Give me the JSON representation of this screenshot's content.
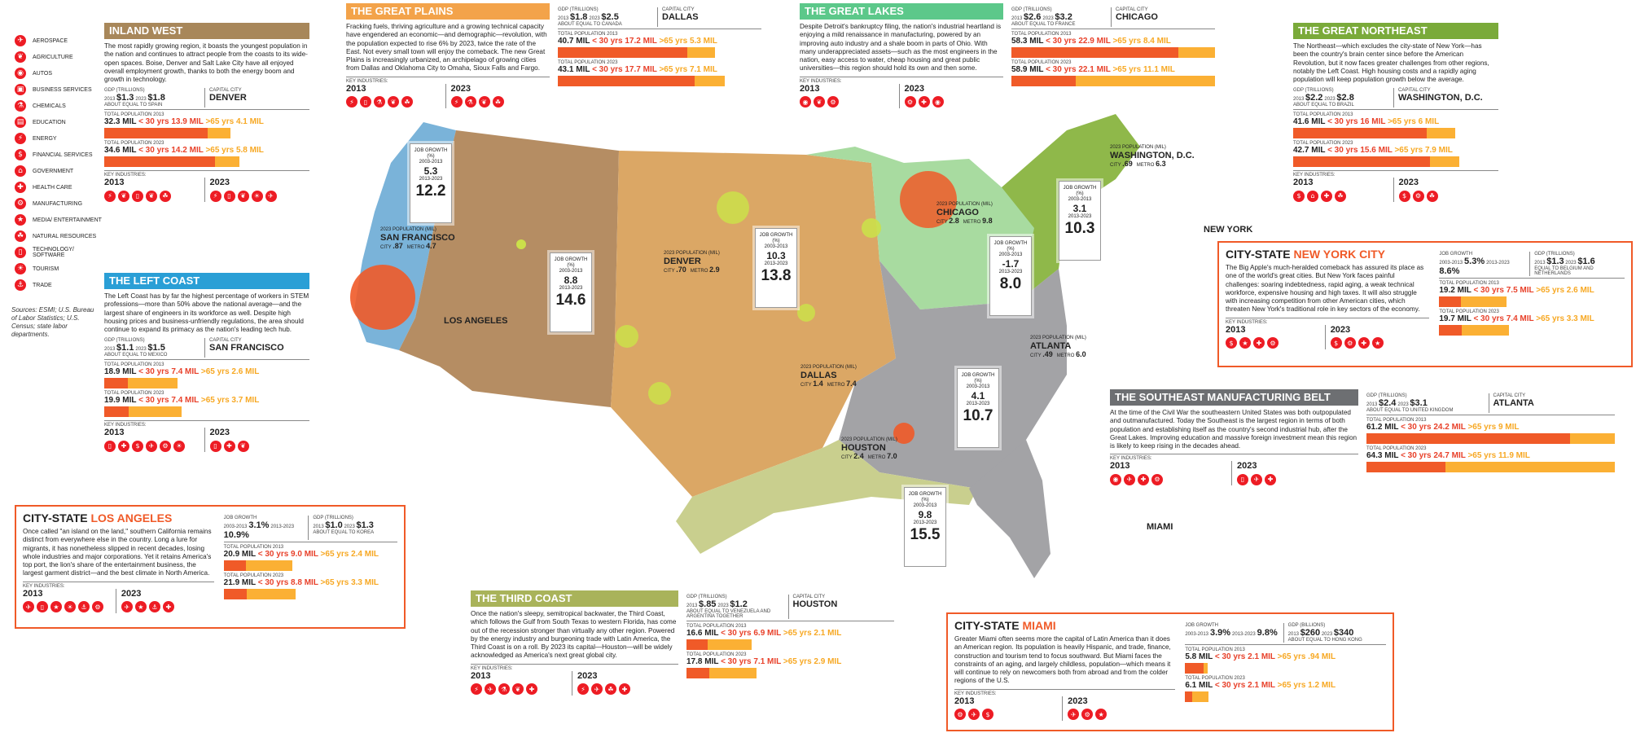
{
  "legend": [
    {
      "label": "Aerospace",
      "icon": "airplane-icon",
      "glyph": "✈"
    },
    {
      "label": "Agriculture",
      "icon": "wheat-icon",
      "glyph": "❦"
    },
    {
      "label": "Autos",
      "icon": "car-icon",
      "glyph": "◉"
    },
    {
      "label": "Business services",
      "icon": "briefcase-icon",
      "glyph": "▣"
    },
    {
      "label": "Chemicals",
      "icon": "flask-icon",
      "glyph": "⚗"
    },
    {
      "label": "Education",
      "icon": "book-icon",
      "glyph": "▤"
    },
    {
      "label": "Energy",
      "icon": "lightning-icon",
      "glyph": "⚡"
    },
    {
      "label": "Financial services",
      "icon": "dollar-icon",
      "glyph": "$"
    },
    {
      "label": "Government",
      "icon": "capitol-icon",
      "glyph": "⌂"
    },
    {
      "label": "Health care",
      "icon": "cross-icon",
      "glyph": "✚"
    },
    {
      "label": "Manufacturing",
      "icon": "gear-icon",
      "glyph": "⚙"
    },
    {
      "label": "Media/ entertainment",
      "icon": "film-icon",
      "glyph": "★"
    },
    {
      "label": "Natural resources",
      "icon": "leaf-icon",
      "glyph": "☘"
    },
    {
      "label": "Technology/ software",
      "icon": "computer-icon",
      "glyph": "▯"
    },
    {
      "label": "Tourism",
      "icon": "palm-icon",
      "glyph": "☀"
    },
    {
      "label": "Trade",
      "icon": "ship-icon",
      "glyph": "⚓"
    }
  ],
  "sources": "Sources: ESMI; U.S. Bureau of Labor Statistics; U.S. Census; state labor departments.",
  "colors": {
    "under30": "#f05a28",
    "middle": "#4d5866",
    "over65": "#fbb034",
    "accent": "#ed1c24"
  },
  "regions": {
    "inland_west": {
      "title": "Inland West",
      "color": "#a8875a",
      "desc": "The most rapidly growing region, it boasts the youngest population in the nation and continues to attract people from the coasts to its wide-open spaces. Boise, Denver and Salt Lake City have all enjoyed overall employment growth, thanks to both the energy boom and growth in technology.",
      "gdp_label": "GDP (TRILLIONS)",
      "gdp_2013": "$1.3",
      "gdp_2023": "$1.8",
      "gdp_equal": "ABOUT EQUAL TO SPAIN",
      "capital_label": "CAPITAL CITY",
      "capital": "DENVER",
      "pop13_label": "TOTAL POPULATION 2013",
      "pop13": "32.3 MIL",
      "pop13_u30": "< 30 yrs 13.9 MIL",
      "pop13_o65": ">65 yrs 4.1 MIL",
      "pop23_label": "TOTAL POPULATION 2023",
      "pop23": "34.6 MIL",
      "pop23_u30": "< 30 yrs 14.2 MIL",
      "pop23_o65": ">65 yrs 5.8 MIL",
      "ind_label": "KEY INDUSTRIES:",
      "y1": "2013",
      "y2": "2023",
      "ind13": [
        "lightning-icon",
        "wheat-icon",
        "computer-icon",
        "wheat-icon",
        "leaf-icon"
      ],
      "ind23": [
        "lightning-icon",
        "computer-icon",
        "wheat-icon",
        "palm-icon",
        "airplane-icon"
      ]
    },
    "left_coast": {
      "title": "The Left Coast",
      "color": "#2a9fd6",
      "desc": "The Left Coast has by far the highest percentage of workers in STEM professions—more than 50% above the national average—and the largest share of engineers in its workforce as well. Despite high housing prices and business-unfriendly regulations, the area should continue to expand its primacy as the nation's leading tech hub.",
      "gdp_label": "GDP (TRILLIONS)",
      "gdp_2013": "$1.1",
      "gdp_2023": "$1.5",
      "gdp_equal": "ABOUT EQUAL TO MEXICO",
      "capital_label": "CAPITAL CITY",
      "capital": "SAN FRANCISCO",
      "pop13_label": "TOTAL POPULATION 2013",
      "pop13": "18.9 MIL",
      "pop13_u30": "< 30 yrs 7.4 MIL",
      "pop13_o65": ">65 yrs 2.6 MIL",
      "pop23_label": "TOTAL POPULATION 2023",
      "pop23": "19.9 MIL",
      "pop23_u30": "< 30 yrs 7.4 MIL",
      "pop23_o65": ">65 yrs 3.7 MIL",
      "ind_label": "KEY INDUSTRIES:",
      "y1": "2013",
      "y2": "2023",
      "ind13": [
        "computer-icon",
        "cross-icon",
        "dollar-icon",
        "airplane-icon",
        "gear-icon",
        "palm-icon"
      ],
      "ind23": [
        "computer-icon",
        "cross-icon",
        "wheat-icon"
      ]
    },
    "great_plains": {
      "title": "The Great Plains",
      "color": "#f3a34a",
      "desc": "Fracking fuels, thriving agriculture and a growing technical capacity have engendered an economic—and demographic—revolution, with the population expected to rise 6% by 2023, twice the rate of the East. Not every small town will enjoy the comeback. The new Great Plains is increasingly urbanized, an archipelago of growing cities from Dallas and Oklahoma City to Omaha, Sioux Falls and Fargo.",
      "ind_label": "KEY INDUSTRIES:",
      "y1": "2013",
      "y2": "2023",
      "ind13": [
        "lightning-icon",
        "computer-icon",
        "flask-icon",
        "wheat-icon",
        "leaf-icon"
      ],
      "ind23": [
        "lightning-icon",
        "flask-icon",
        "wheat-icon",
        "leaf-icon"
      ],
      "gdp_label": "GDP (TRILLIONS)",
      "gdp_2013": "$1.8",
      "gdp_2023": "$2.5",
      "gdp_equal": "ABOUT EQUAL TO CANADA",
      "capital_label": "CAPITAL CITY",
      "capital": "DALLAS",
      "pop13_label": "TOTAL POPULATION 2013",
      "pop13": "40.7 MIL",
      "pop13_u30": "< 30 yrs 17.2 MIL",
      "pop13_o65": ">65 yrs 5.3 MIL",
      "pop23_label": "TOTAL POPULATION 2023",
      "pop23": "43.1 MIL",
      "pop23_u30": "< 30 yrs 17.7 MIL",
      "pop23_o65": ">65 yrs 7.1 MIL"
    },
    "great_lakes": {
      "title": "The Great Lakes",
      "color": "#5cc88a",
      "desc": "Despite Detroit's bankruptcy filing, the nation's industrial heartland is enjoying a mild renaissance in manufacturing, powered by an improving auto industry and a shale boom in parts of Ohio. With many underappreciated assets—such as the most engineers in the nation, easy access to water, cheap housing and great public universities—this region should hold its own and then some.",
      "ind_label": "KEY INDUSTRIES:",
      "y1": "2013",
      "y2": "2023",
      "ind13": [
        "car-icon",
        "wheat-icon",
        "gear-icon"
      ],
      "ind23": [
        "gear-icon",
        "cross-icon",
        "car-icon"
      ],
      "gdp_label": "GDP (TRILLIONS)",
      "gdp_2013": "$2.6",
      "gdp_2023": "$3.2",
      "gdp_equal": "ABOUT EQUAL TO FRANCE",
      "capital_label": "CAPITAL CITY",
      "capital": "CHICAGO",
      "pop13_label": "TOTAL POPULATION 2013",
      "pop13": "58.3 MIL",
      "pop13_u30": "< 30 yrs 22.9 MIL",
      "pop13_o65": ">65 yrs 8.4 MIL",
      "pop23_label": "TOTAL POPULATION 2023",
      "pop23": "58.9 MIL",
      "pop23_u30": "< 30 yrs 22.1 MIL",
      "pop23_o65": ">65 yrs 11.1 MIL"
    },
    "great_northeast": {
      "title": "The Great Northeast",
      "color": "#7aaa3a",
      "desc": "The Northeast—which excludes the city-state of New York—has been the country's brain center since before the American Revolution, but it now faces greater challenges from other regions, notably the Left Coast. High housing costs and a rapidly aging population will keep population growth below the average.",
      "gdp_label": "GDP (TRILLIONS)",
      "gdp_2013": "$2.2",
      "gdp_2023": "$2.8",
      "gdp_equal": "ABOUT EQUAL TO BRAZIL",
      "capital_label": "CAPITAL CITY",
      "capital": "WASHINGTON, D.C.",
      "pop13_label": "TOTAL POPULATION 2013",
      "pop13": "41.6 MIL",
      "pop13_u30": "< 30 yrs 16 MIL",
      "pop13_o65": ">65 yrs 6 MIL",
      "pop23_label": "TOTAL POPULATION 2023",
      "pop23": "42.7 MIL",
      "pop23_u30": "< 30 yrs 15.6 MIL",
      "pop23_o65": ">65 yrs 7.9 MIL",
      "ind_label": "KEY INDUSTRIES:",
      "y1": "2013",
      "y2": "2023",
      "ind13": [
        "dollar-icon",
        "capitol-icon",
        "cross-icon",
        "leaf-icon"
      ],
      "ind23": [
        "dollar-icon",
        "gear-icon",
        "leaf-icon"
      ]
    },
    "southeast": {
      "title": "The Southeast Manufacturing Belt",
      "color": "#6d6f72",
      "desc": "At the time of the Civil War the southeastern United States was both outpopulated and outmanufactured. Today the Southeast is the largest region in terms of both population and establishing itself as the country's second industrial hub, after the Great Lakes. Improving education and massive foreign investment mean this region is likely to keep rising in the decades ahead.",
      "ind_label": "KEY INDUSTRIES:",
      "y1": "2013",
      "y2": "2023",
      "ind13": [
        "car-icon",
        "airplane-icon",
        "cross-icon",
        "gear-icon"
      ],
      "ind23": [
        "computer-icon",
        "airplane-icon",
        "cross-icon"
      ],
      "gdp_label": "GDP (TRILLIONS)",
      "gdp_2013": "$2.4",
      "gdp_2023": "$3.1",
      "gdp_equal": "ABOUT EQUAL TO UNITED KINGDOM",
      "capital_label": "CAPITAL CITY",
      "capital": "ATLANTA",
      "pop13_label": "TOTAL POPULATION 2013",
      "pop13": "61.2 MIL",
      "pop13_u30": "< 30 yrs 24.2 MIL",
      "pop13_o65": ">65 yrs 9 MIL",
      "pop23_label": "TOTAL POPULATION 2023",
      "pop23": "64.3 MIL",
      "pop23_u30": "< 30 yrs 24.7 MIL",
      "pop23_o65": ">65 yrs 11.9 MIL"
    },
    "third_coast": {
      "title": "The Third Coast",
      "color": "#a9b35a",
      "desc": "Once the nation's sleepy, semitropical backwater, the Third Coast, which follows the Gulf from South Texas to western Florida, has come out of the recession stronger than virtually any other region. Powered by the energy industry and burgeoning trade with Latin America, the Third Coast is on a roll. By 2023 its capital—Houston—will be widely acknowledged as America's next great global city.",
      "ind_label": "KEY INDUSTRIES:",
      "y1": "2013",
      "y2": "2023",
      "ind13": [
        "lightning-icon",
        "airplane-icon",
        "flask-icon",
        "wheat-icon",
        "cross-icon"
      ],
      "ind23": [
        "lightning-icon",
        "airplane-icon",
        "leaf-icon",
        "cross-icon"
      ],
      "gdp_label": "GDP (TRILLIONS)",
      "gdp_2013": "$.85",
      "gdp_2023": "$1.2",
      "gdp_equal": "ABOUT EQUAL TO VENEZUELA AND ARGENTINA TOGETHER",
      "capital_label": "CAPITAL CITY",
      "capital": "HOUSTON",
      "pop13_label": "TOTAL POPULATION 2013",
      "pop13": "16.6 MIL",
      "pop13_u30": "< 30 yrs 6.9 MIL",
      "pop13_o65": ">65 yrs 2.1 MIL",
      "pop23_label": "TOTAL POPULATION 2023",
      "pop23": "17.8 MIL",
      "pop23_u30": "< 30 yrs 7.1 MIL",
      "pop23_o65": ">65 yrs 2.9 MIL"
    }
  },
  "cities": {
    "la": {
      "prefix": "CITY-STATE",
      "name": "LOS ANGELES",
      "desc": "Once called \"an island on the land,\" southern California remains distinct from everywhere else in the country. Long a lure for migrants, it has nonetheless slipped in recent decades, losing whole industries and major corporations. Yet it retains America's top port, the lion's share of the entertainment business, the largest garment district—and the best climate in North America.",
      "jg_label": "JOB GROWTH",
      "jg1_yrs": "2003-2013",
      "jg1": "3.1%",
      "jg2_yrs": "2013-2023",
      "jg2": "10.9%",
      "gdp_label": "GDP (TRILLIONS)",
      "gdp_2013": "$1.0",
      "gdp_2023": "$1.3",
      "gdp_equal": "ABOUT EQUAL TO KOREA",
      "pop13_label": "TOTAL POPULATION 2013",
      "pop13": "20.9 MIL",
      "pop13_u30": "< 30 yrs 9.0 MIL",
      "pop13_o65": ">65 yrs 2.4 MIL",
      "pop23_label": "TOTAL POPULATION 2023",
      "pop23": "21.9 MIL",
      "pop23_u30": "< 30 yrs 8.8 MIL",
      "pop23_o65": ">65 yrs 3.3 MIL",
      "ind_label": "KEY INDUSTRIES:",
      "y1": "2013",
      "y2": "2023",
      "ind13": [
        "airplane-icon",
        "computer-icon",
        "film-icon",
        "palm-icon",
        "ship-icon",
        "gear-icon"
      ],
      "ind23": [
        "airplane-icon",
        "film-icon",
        "ship-icon",
        "cross-icon"
      ]
    },
    "ny": {
      "prefix": "CITY-STATE",
      "name": "NEW YORK CITY",
      "desc": "The Big Apple's much-heralded comeback has assured its place as one of the world's great cities. But New York faces painful challenges: soaring indebtedness, rapid aging, a weak technical workforce, expensive housing and high taxes. It will also struggle with increasing competition from other American cities, which threaten New York's traditional role in key sectors of the economy.",
      "jg_label": "JOB GROWTH",
      "jg1_yrs": "2003-2013",
      "jg1": "5.3%",
      "jg2_yrs": "2013-2023",
      "jg2": "8.6%",
      "gdp_label": "GDP (TRILLIONS)",
      "gdp_2013": "$1.3",
      "gdp_2023": "$1.6",
      "gdp_equal": "EQUAL TO BELGIUM AND NETHERLANDS",
      "pop13_label": "TOTAL POPULATION 2013",
      "pop13": "19.2 MIL",
      "pop13_u30": "< 30 yrs 7.5 MIL",
      "pop13_o65": ">65 yrs 2.6 MIL",
      "pop23_label": "TOTAL POPULATION 2023",
      "pop23": "19.7 MIL",
      "pop23_u30": "< 30 yrs 7.4 MIL",
      "pop23_o65": ">65 yrs 3.3 MIL",
      "ind_label": "KEY INDUSTRIES:",
      "y1": "2013",
      "y2": "2023",
      "ind13": [
        "dollar-icon",
        "film-icon",
        "cross-icon",
        "gear-icon"
      ],
      "ind23": [
        "dollar-icon",
        "gear-icon",
        "cross-icon",
        "film-icon"
      ]
    },
    "miami": {
      "prefix": "CITY-STATE",
      "name": "MIAMI",
      "desc": "Greater Miami often seems more the capital of Latin America than it does an American region. Its population is heavily Hispanic, and trade, finance, construction and tourism tend to focus southward. But Miami faces the constraints of an aging, and largely childless, population—which means it will continue to rely on newcomers both from abroad and from the colder regions of the U.S.",
      "jg_label": "JOB GROWTH",
      "jg1_yrs": "2003-2013",
      "jg1": "3.9%",
      "jg2_yrs": "2013-2023",
      "jg2": "9.8%",
      "gdp_label": "GDP (BILLIONS)",
      "gdp_2013": "$260",
      "gdp_2023": "$340",
      "gdp_equal": "ABOUT EQUAL TO HONG KONG",
      "pop13_label": "TOTAL POPULATION 2013",
      "pop13": "5.8 MIL",
      "pop13_u30": "< 30 yrs 2.1 MIL",
      "pop13_o65": ">65 yrs .94 MIL",
      "pop23_label": "TOTAL POPULATION 2023",
      "pop23": "6.1 MIL",
      "pop23_u30": "< 30 yrs 2.1 MIL",
      "pop23_o65": ">65 yrs 1.2 MIL",
      "ind_label": "KEY INDUSTRIES:",
      "y1": "2013",
      "y2": "2023",
      "ind13": [
        "gear-icon",
        "airplane-icon",
        "dollar-icon"
      ],
      "ind23": [
        "airplane-icon",
        "gear-icon",
        "film-icon"
      ]
    }
  },
  "jobgrowth": [
    {
      "id": "inland",
      "label": "JOB GROWTH (%)",
      "yrs1": "2003-2013",
      "v1": "5.3",
      "yrs2": "2013-2023",
      "v2": "12.2"
    },
    {
      "id": "plains",
      "label": "JOB GROWTH (%)",
      "yrs1": "2003-2013",
      "v1": "8.8",
      "yrs2": "2013-2023",
      "v2": "14.6"
    },
    {
      "id": "plains2",
      "label": "JOB GROWTH (%)",
      "yrs1": "2003-2013",
      "v1": "10.3",
      "yrs2": "2013-2023",
      "v2": "13.8"
    },
    {
      "id": "lakes",
      "label": "JOB GROWTH (%)",
      "yrs1": "2003-2013",
      "v1": "-1.7",
      "yrs2": "2013-2023",
      "v2": "8.0"
    },
    {
      "id": "northeast",
      "label": "JOB GROWTH (%)",
      "yrs1": "2003-2013",
      "v1": "3.1",
      "yrs2": "2013-2023",
      "v2": "10.3"
    },
    {
      "id": "southeast",
      "label": "JOB GROWTH (%)",
      "yrs1": "2003-2013",
      "v1": "4.1",
      "yrs2": "2013-2023",
      "v2": "10.7"
    },
    {
      "id": "thirdcoast",
      "label": "JOB GROWTH (%)",
      "yrs1": "2003-2013",
      "v1": "9.8",
      "yrs2": "2013-2023",
      "v2": "15.5"
    }
  ],
  "metros": [
    {
      "id": "sf",
      "label": "2023 POPULATION (MIL)",
      "name": "SAN FRANCISCO",
      "city_label": "CITY",
      "city": ".87",
      "metro_label": "METRO",
      "metro": "4.7"
    },
    {
      "id": "denver",
      "label": "2023 POPULATION (MIL)",
      "name": "DENVER",
      "city_label": "CITY",
      "city": ".70",
      "metro_label": "METRO",
      "metro": "2.9"
    },
    {
      "id": "chicago",
      "label": "2023 POPULATION (MIL)",
      "name": "CHICAGO",
      "city_label": "CITY",
      "city": "2.8",
      "metro_label": "METRO",
      "metro": "9.8"
    },
    {
      "id": "dc",
      "label": "2023 POPULATION (MIL)",
      "name": "WASHINGTON, D.C.",
      "city_label": "CITY",
      "city": ".69",
      "metro_label": "METRO",
      "metro": "6.3"
    },
    {
      "id": "dallas",
      "label": "2023 POPULATION (MIL)",
      "name": "DALLAS",
      "city_label": "CITY",
      "city": "1.4",
      "metro_label": "METRO",
      "metro": "7.4"
    },
    {
      "id": "atlanta",
      "label": "2023 POPULATION (MIL)",
      "name": "ATLANTA",
      "city_label": "CITY",
      "city": ".49",
      "metro_label": "METRO",
      "metro": "6.0"
    },
    {
      "id": "houston",
      "label": "2023 POPULATION (MIL)",
      "name": "HOUSTON",
      "city_label": "CITY",
      "city": "2.4",
      "metro_label": "METRO",
      "metro": "7.0"
    }
  ],
  "map_labels": {
    "la": "LOS ANGELES",
    "ny": "NEW YORK",
    "miami": "MIAMI"
  }
}
